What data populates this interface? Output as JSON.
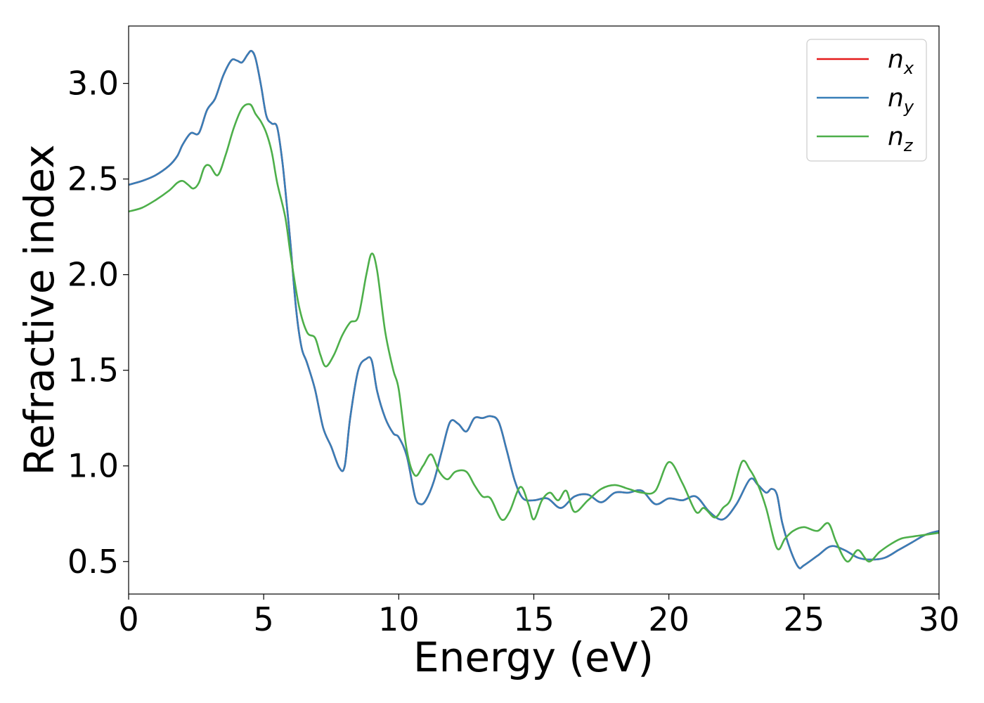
{
  "chart_data": {
    "type": "line",
    "xlabel": "Energy (eV)",
    "ylabel": "Refractive index",
    "xlim": [
      0,
      30
    ],
    "ylim": [
      0.33,
      3.3
    ],
    "xticks": [
      0,
      5,
      10,
      15,
      20,
      25,
      30
    ],
    "yticks": [
      0.5,
      1.0,
      1.5,
      2.0,
      2.5,
      3.0
    ],
    "xtick_labels": [
      "0",
      "5",
      "10",
      "15",
      "20",
      "25",
      "30"
    ],
    "ytick_labels": [
      "0.5",
      "1.0",
      "1.5",
      "2.0",
      "2.5",
      "3.0"
    ],
    "grid": false,
    "legend_position": "top-right",
    "series": [
      {
        "name": "n",
        "subscript": "x",
        "color": "#e41a1c",
        "x": [
          0,
          0.5,
          1,
          1.5,
          1.8,
          2.0,
          2.3,
          2.6,
          2.9,
          3.2,
          3.5,
          3.8,
          4.0,
          4.2,
          4.4,
          4.55,
          4.7,
          4.9,
          5.1,
          5.3,
          5.5,
          5.7,
          5.9,
          6.0,
          6.2,
          6.4,
          6.6,
          6.9,
          7.2,
          7.5,
          7.8,
          8.0,
          8.2,
          8.5,
          8.8,
          9.0,
          9.2,
          9.5,
          9.8,
          10.0,
          10.3,
          10.6,
          10.8,
          11.0,
          11.3,
          11.6,
          11.9,
          12.2,
          12.5,
          12.8,
          13.1,
          13.4,
          13.7,
          14.0,
          14.3,
          14.6,
          15.0,
          15.5,
          16.0,
          16.5,
          17.0,
          17.5,
          18.0,
          18.5,
          19.0,
          19.5,
          20.0,
          20.5,
          21.0,
          21.5,
          22.0,
          22.5,
          23.0,
          23.3,
          23.6,
          23.8,
          24.0,
          24.2,
          24.5,
          24.8,
          25.0,
          25.5,
          26.0,
          26.5,
          27.0,
          27.5,
          28.0,
          28.5,
          29.0,
          29.5,
          30.0
        ],
        "values": [
          2.47,
          2.49,
          2.52,
          2.57,
          2.62,
          2.68,
          2.74,
          2.74,
          2.86,
          2.92,
          3.04,
          3.12,
          3.12,
          3.11,
          3.15,
          3.17,
          3.13,
          2.99,
          2.83,
          2.79,
          2.77,
          2.58,
          2.3,
          2.15,
          1.82,
          1.62,
          1.54,
          1.4,
          1.2,
          1.1,
          0.99,
          1.0,
          1.25,
          1.5,
          1.56,
          1.55,
          1.39,
          1.25,
          1.17,
          1.15,
          1.05,
          0.84,
          0.8,
          0.82,
          0.92,
          1.08,
          1.23,
          1.22,
          1.18,
          1.25,
          1.25,
          1.26,
          1.23,
          1.08,
          0.92,
          0.83,
          0.82,
          0.83,
          0.78,
          0.84,
          0.85,
          0.81,
          0.86,
          0.86,
          0.87,
          0.8,
          0.83,
          0.82,
          0.84,
          0.76,
          0.72,
          0.8,
          0.93,
          0.9,
          0.86,
          0.88,
          0.85,
          0.7,
          0.56,
          0.47,
          0.48,
          0.53,
          0.58,
          0.56,
          0.52,
          0.51,
          0.52,
          0.56,
          0.6,
          0.64,
          0.66
        ]
      },
      {
        "name": "n",
        "subscript": "y",
        "color": "#377eb8",
        "x": [
          0,
          0.5,
          1,
          1.5,
          1.8,
          2.0,
          2.3,
          2.6,
          2.9,
          3.2,
          3.5,
          3.8,
          4.0,
          4.2,
          4.4,
          4.55,
          4.7,
          4.9,
          5.1,
          5.3,
          5.5,
          5.7,
          5.9,
          6.0,
          6.2,
          6.4,
          6.6,
          6.9,
          7.2,
          7.5,
          7.8,
          8.0,
          8.2,
          8.5,
          8.8,
          9.0,
          9.2,
          9.5,
          9.8,
          10.0,
          10.3,
          10.6,
          10.8,
          11.0,
          11.3,
          11.6,
          11.9,
          12.2,
          12.5,
          12.8,
          13.1,
          13.4,
          13.7,
          14.0,
          14.3,
          14.6,
          15.0,
          15.5,
          16.0,
          16.5,
          17.0,
          17.5,
          18.0,
          18.5,
          19.0,
          19.5,
          20.0,
          20.5,
          21.0,
          21.5,
          22.0,
          22.5,
          23.0,
          23.3,
          23.6,
          23.8,
          24.0,
          24.2,
          24.5,
          24.8,
          25.0,
          25.5,
          26.0,
          26.5,
          27.0,
          27.5,
          28.0,
          28.5,
          29.0,
          29.5,
          30.0
        ],
        "values": [
          2.47,
          2.49,
          2.52,
          2.57,
          2.62,
          2.68,
          2.74,
          2.74,
          2.86,
          2.92,
          3.04,
          3.12,
          3.12,
          3.11,
          3.15,
          3.17,
          3.13,
          2.99,
          2.83,
          2.79,
          2.77,
          2.58,
          2.3,
          2.15,
          1.82,
          1.62,
          1.54,
          1.4,
          1.2,
          1.1,
          0.99,
          1.0,
          1.25,
          1.5,
          1.56,
          1.55,
          1.39,
          1.25,
          1.17,
          1.15,
          1.05,
          0.84,
          0.8,
          0.82,
          0.92,
          1.08,
          1.23,
          1.22,
          1.18,
          1.25,
          1.25,
          1.26,
          1.23,
          1.08,
          0.92,
          0.83,
          0.82,
          0.83,
          0.78,
          0.84,
          0.85,
          0.81,
          0.86,
          0.86,
          0.87,
          0.8,
          0.83,
          0.82,
          0.84,
          0.76,
          0.72,
          0.8,
          0.93,
          0.9,
          0.86,
          0.88,
          0.85,
          0.7,
          0.56,
          0.47,
          0.48,
          0.53,
          0.58,
          0.56,
          0.52,
          0.51,
          0.52,
          0.56,
          0.6,
          0.64,
          0.66
        ]
      },
      {
        "name": "n",
        "subscript": "z",
        "color": "#4daf4a",
        "x": [
          0,
          0.5,
          1,
          1.5,
          1.8,
          2.0,
          2.2,
          2.4,
          2.6,
          2.8,
          3.0,
          3.3,
          3.6,
          3.9,
          4.2,
          4.5,
          4.7,
          4.9,
          5.1,
          5.3,
          5.5,
          5.8,
          6.0,
          6.3,
          6.6,
          6.9,
          7.1,
          7.3,
          7.6,
          7.9,
          8.2,
          8.5,
          8.8,
          9.0,
          9.2,
          9.5,
          9.8,
          10.0,
          10.3,
          10.6,
          10.9,
          11.2,
          11.5,
          11.8,
          12.1,
          12.5,
          12.8,
          13.1,
          13.4,
          13.8,
          14.1,
          14.5,
          14.8,
          15.0,
          15.3,
          15.6,
          15.9,
          16.2,
          16.5,
          17.0,
          17.5,
          18.0,
          18.5,
          19.0,
          19.5,
          20.0,
          20.5,
          21.0,
          21.3,
          21.7,
          22.0,
          22.3,
          22.7,
          23.0,
          23.3,
          23.6,
          24.0,
          24.3,
          24.6,
          25.0,
          25.5,
          25.9,
          26.2,
          26.6,
          27.0,
          27.4,
          27.8,
          28.2,
          28.6,
          29.0,
          29.5,
          30.0
        ],
        "values": [
          2.33,
          2.35,
          2.39,
          2.44,
          2.48,
          2.49,
          2.47,
          2.45,
          2.48,
          2.56,
          2.57,
          2.52,
          2.63,
          2.77,
          2.87,
          2.89,
          2.84,
          2.8,
          2.74,
          2.64,
          2.48,
          2.3,
          2.1,
          1.84,
          1.7,
          1.67,
          1.58,
          1.52,
          1.58,
          1.68,
          1.75,
          1.78,
          2.0,
          2.11,
          2.02,
          1.7,
          1.5,
          1.4,
          1.08,
          0.95,
          1.0,
          1.06,
          0.97,
          0.93,
          0.97,
          0.97,
          0.9,
          0.84,
          0.83,
          0.72,
          0.76,
          0.89,
          0.8,
          0.72,
          0.82,
          0.86,
          0.82,
          0.87,
          0.76,
          0.82,
          0.88,
          0.9,
          0.88,
          0.86,
          0.87,
          1.02,
          0.91,
          0.76,
          0.78,
          0.73,
          0.78,
          0.83,
          1.02,
          0.98,
          0.9,
          0.78,
          0.57,
          0.62,
          0.66,
          0.68,
          0.66,
          0.7,
          0.6,
          0.5,
          0.56,
          0.5,
          0.55,
          0.59,
          0.62,
          0.63,
          0.64,
          0.65
        ]
      }
    ]
  }
}
